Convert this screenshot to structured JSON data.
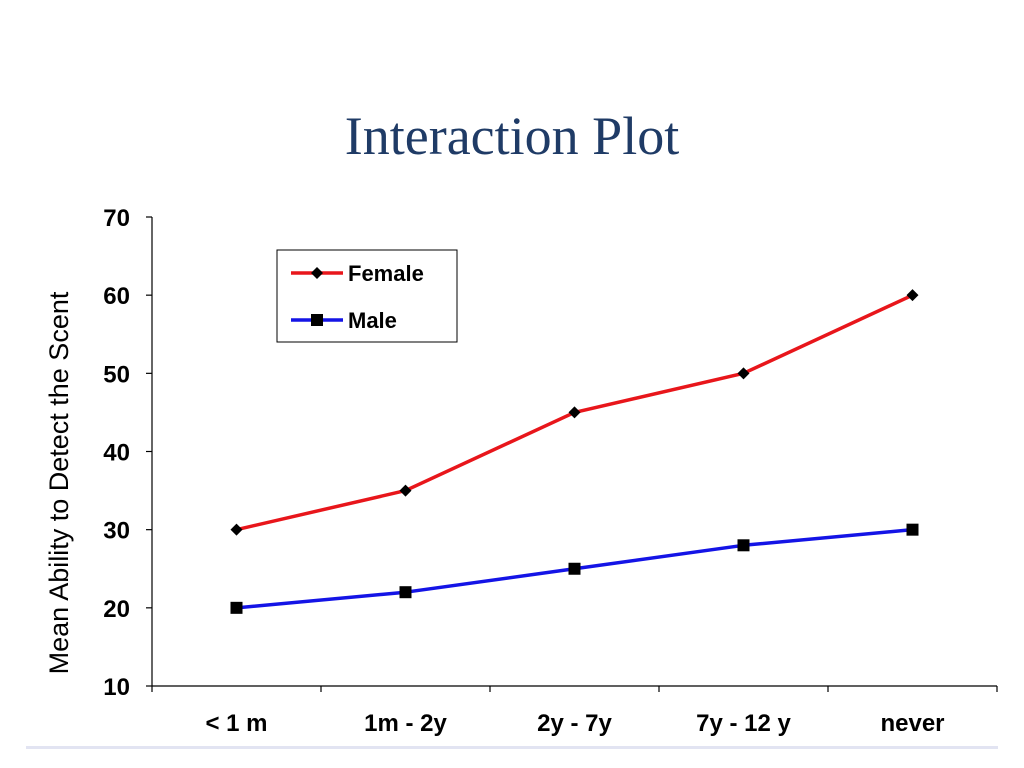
{
  "slide": {
    "title": "Interaction Plot"
  },
  "chart_data": {
    "type": "line",
    "title": "Interaction Plot",
    "xlabel": "",
    "ylabel": "Mean Ability to Detect the Scent",
    "categories": [
      "< 1 m",
      "1m - 2y",
      "2y - 7y",
      "7y - 12 y",
      "never"
    ],
    "ylim": [
      10,
      70
    ],
    "yticks": [
      10,
      20,
      30,
      40,
      50,
      60,
      70
    ],
    "grid": false,
    "legend_position": "top-left",
    "series": [
      {
        "name": "Female",
        "values": [
          30,
          35,
          45,
          50,
          60
        ],
        "color": "#e8161b",
        "marker": "diamond"
      },
      {
        "name": "Male",
        "values": [
          20,
          22,
          25,
          28,
          30
        ],
        "color": "#1414e6",
        "marker": "square"
      }
    ]
  }
}
